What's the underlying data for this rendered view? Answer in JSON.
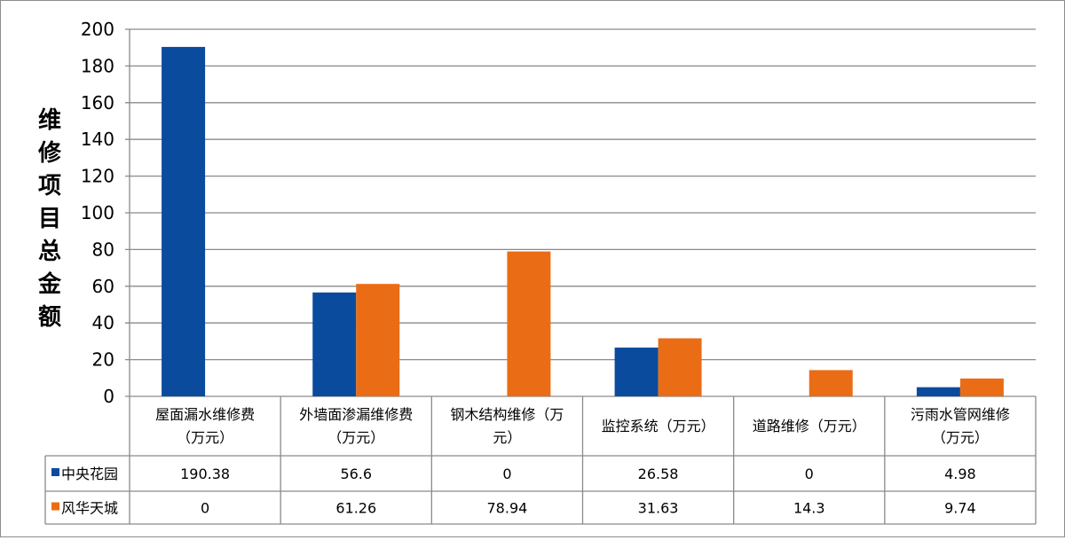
{
  "chart_data": {
    "type": "bar",
    "ylabel": "维修项目总金额",
    "ylim": [
      0,
      200
    ],
    "yticks": [
      0,
      20,
      40,
      60,
      80,
      100,
      120,
      140,
      160,
      180,
      200
    ],
    "grid": true,
    "categories": [
      [
        "屋面漏水维修费",
        "（万元）"
      ],
      [
        "外墙面渗漏维修费",
        "（万元）"
      ],
      [
        "钢木结构维修（万",
        "元）"
      ],
      [
        "监控系统（万元）"
      ],
      [
        "道路维修（万元）"
      ],
      [
        "污雨水管网维修",
        "（万元）"
      ]
    ],
    "series": [
      {
        "name": "中央花园",
        "color": "#0a4b9e",
        "values": [
          190.38,
          56.6,
          0,
          26.58,
          0,
          4.98
        ],
        "labels": [
          "190.38",
          "56.6",
          "0",
          "26.58",
          "0",
          "4.98"
        ]
      },
      {
        "name": "风华天城",
        "color": "#ea6d16",
        "values": [
          0,
          61.26,
          78.94,
          31.63,
          14.3,
          9.74
        ],
        "labels": [
          "0",
          "61.26",
          "78.94",
          "31.63",
          "14.3",
          "9.74"
        ]
      }
    ]
  }
}
